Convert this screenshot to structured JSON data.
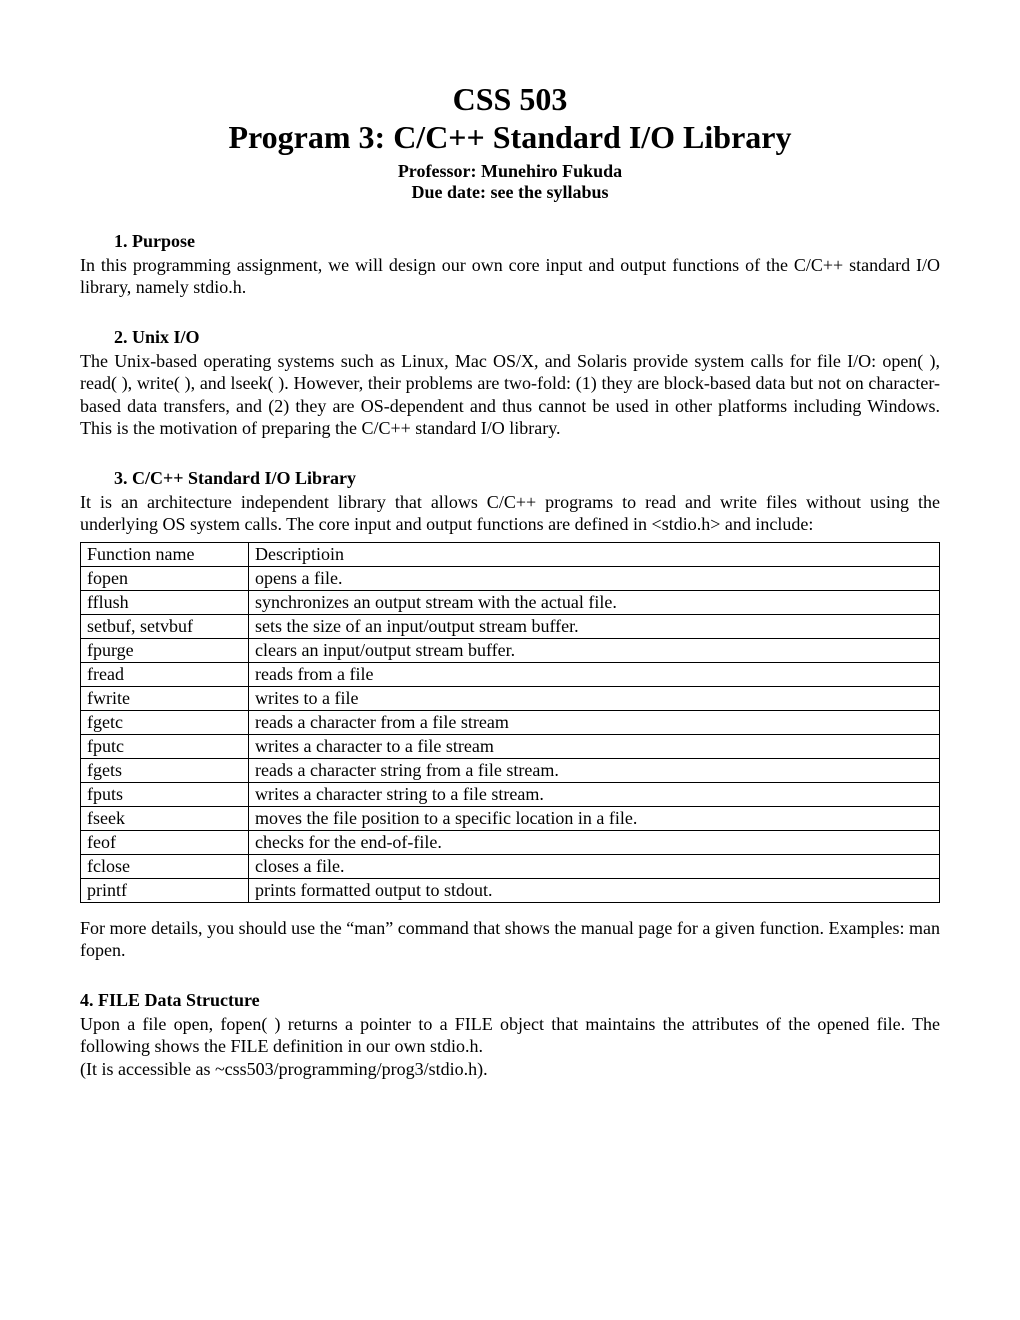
{
  "header": {
    "course": "CSS 503",
    "title": "Program 3: C/C++ Standard I/O Library",
    "professor": "Professor: Munehiro Fukuda",
    "due": "Due date: see the syllabus"
  },
  "sections": {
    "s1": {
      "heading": "1.   Purpose",
      "body": "In this programming assignment, we will design our own core input and output functions of the C/C++ standard I/O library, namely stdio.h."
    },
    "s2": {
      "heading": "2.   Unix I/O",
      "body": "The Unix-based operating systems such as Linux, Mac OS/X, and Solaris provide system calls for file I/O: open( ), read( ), write( ), and lseek( ). However, their problems are two-fold: (1) they are block-based data but not on character-based data transfers, and (2) they are OS-dependent and thus cannot be used in other platforms including Windows. This is the motivation of preparing the C/C++ standard I/O library."
    },
    "s3": {
      "heading": "3.   C/C++ Standard I/O Library",
      "body": "It is an architecture independent library that allows C/C++ programs to read and write files without using the underlying OS system calls. The core input and output functions are defined in <stdio.h> and include:"
    },
    "s4": {
      "heading": "4.  FILE Data Structure",
      "body1": "Upon a file open, fopen( ) returns a pointer to a FILE object that maintains the attributes of the opened file. The following shows the FILE definition in our own stdio.h.",
      "body2": "(It is accessible as ~css503/programming/prog3/stdio.h)."
    },
    "after_table": "For more details, you should use the “man” command that shows the manual page for a given function. Examples: man fopen."
  },
  "table": {
    "header": {
      "col1": "Function name",
      "col2": "Descriptioin"
    },
    "rows": [
      {
        "name": "fopen",
        "desc": "opens a file."
      },
      {
        "name": "fflush",
        "desc": "synchronizes an output stream with the actual file."
      },
      {
        "name": "setbuf, setvbuf",
        "desc": "sets the size of an input/output stream buffer."
      },
      {
        "name": "fpurge",
        "desc": "clears an input/output stream buffer."
      },
      {
        "name": "fread",
        "desc": "reads from a file"
      },
      {
        "name": "fwrite",
        "desc": "writes to a file"
      },
      {
        "name": "fgetc",
        "desc": "reads a character from a file stream"
      },
      {
        "name": "fputc",
        "desc": "writes a character to a file stream"
      },
      {
        "name": "fgets",
        "desc": "reads a character string from a file stream."
      },
      {
        "name": "fputs",
        "desc": "writes a character string to a file stream."
      },
      {
        "name": "fseek",
        "desc": "moves the file position to a specific location in a file."
      },
      {
        "name": "feof",
        "desc": "checks for the end-of-file."
      },
      {
        "name": "fclose",
        "desc": "closes a file."
      },
      {
        "name": "printf",
        "desc": "prints formatted output to stdout."
      }
    ]
  }
}
